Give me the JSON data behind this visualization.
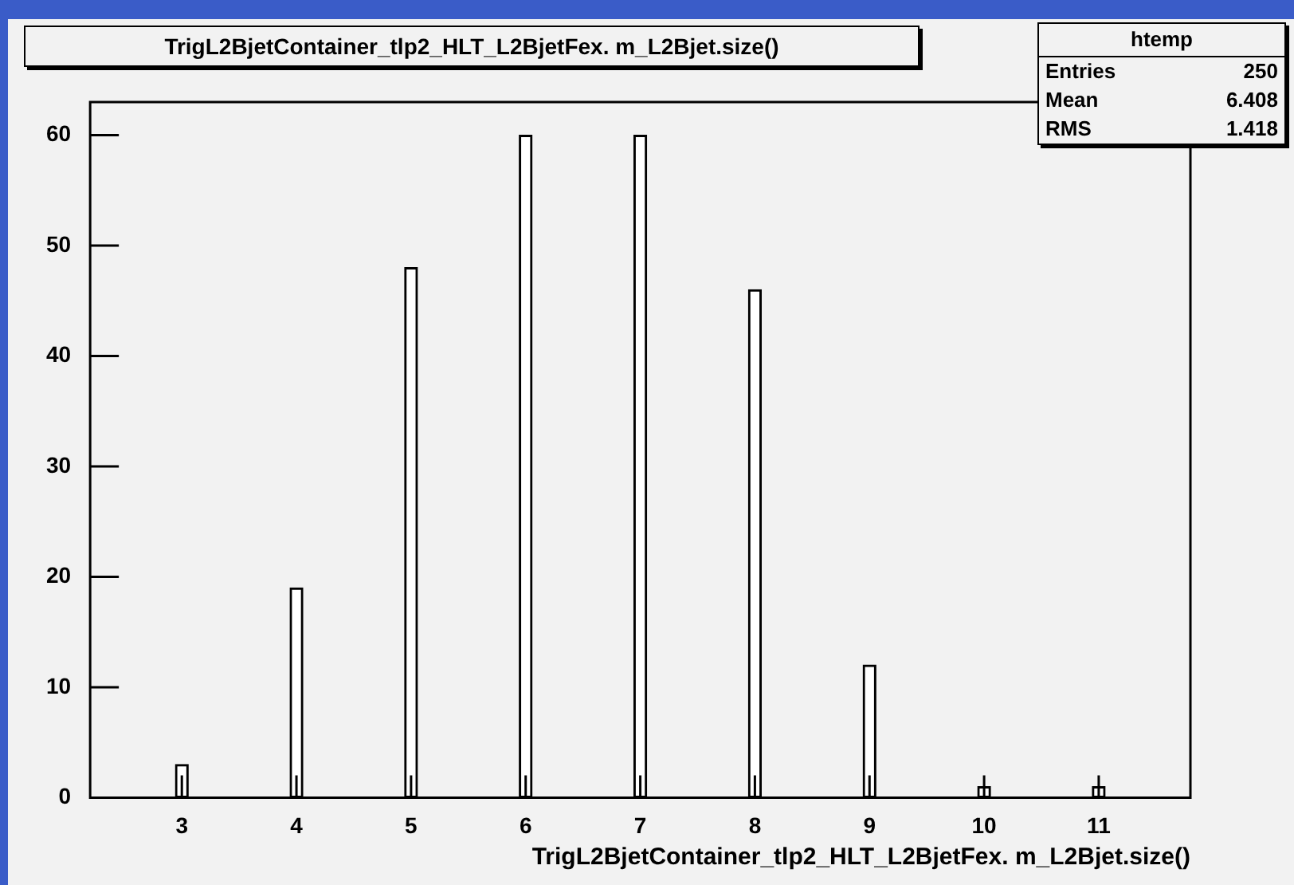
{
  "chart_data": {
    "type": "bar",
    "title": "TrigL2BjetContainer_tlp2_HLT_L2BjetFex. m_L2Bjet.size()",
    "xlabel": "TrigL2BjetContainer_tlp2_HLT_L2BjetFex. m_L2Bjet.size()",
    "x": [
      3,
      4,
      5,
      6,
      7,
      8,
      9,
      10,
      11
    ],
    "values": [
      3,
      19,
      48,
      60,
      60,
      46,
      12,
      1,
      1
    ],
    "color": "#ffffff",
    "xlim": [
      2.2,
      11.8
    ],
    "xticks": [
      3,
      4,
      5,
      6,
      7,
      8,
      9,
      10,
      11
    ],
    "ylim": [
      0,
      63
    ],
    "yticks": [
      0,
      10,
      20,
      30,
      40,
      50,
      60
    ],
    "grid": false,
    "legend": false,
    "annotations": [
      "htemp",
      "Entries",
      "250",
      "Mean",
      "6.408",
      "RMS",
      "1.418"
    ]
  }
}
